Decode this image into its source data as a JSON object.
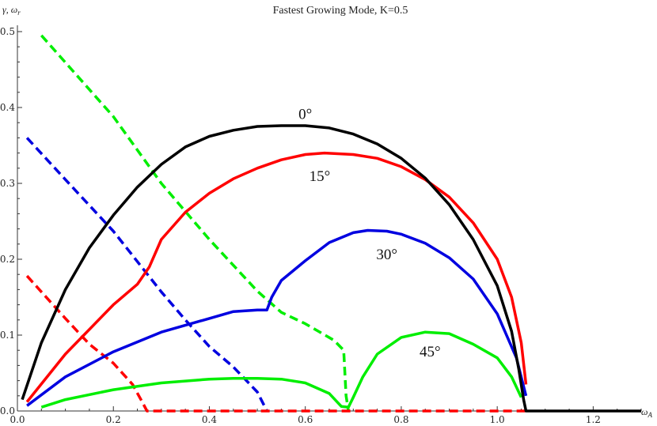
{
  "chart_data": {
    "type": "line",
    "title": "Fastest Growing Mode, K=0.5",
    "xlabel": "ω",
    "xlabel_sub": "A",
    "ylabel": "γ, ω",
    "ylabel_sub": "r",
    "xlim": [
      0,
      1.3
    ],
    "ylim": [
      0,
      0.5
    ],
    "x_ticks": [
      0.0,
      0.2,
      0.4,
      0.6,
      0.8,
      1.0,
      1.2
    ],
    "x_tick_labels": [
      "0.0",
      "0.2",
      "0.4",
      "0.6",
      "0.8",
      "1.0",
      "1.2"
    ],
    "y_ticks": [
      0.0,
      0.1,
      0.2,
      0.3,
      0.4,
      0.5
    ],
    "y_tick_labels": [
      "0.0",
      "0.1",
      "0.2",
      "0.3",
      "0.4",
      "0.5"
    ],
    "grid": false,
    "colors": {
      "black": "#000000",
      "red": "#ff0000",
      "blue": "#0000e0",
      "green": "#00ee00"
    },
    "series": [
      {
        "color": "#000000",
        "dash": false,
        "points": [
          [
            0.01,
            0.015
          ],
          [
            0.05,
            0.09
          ],
          [
            0.1,
            0.16
          ],
          [
            0.15,
            0.215
          ],
          [
            0.2,
            0.258
          ],
          [
            0.25,
            0.295
          ],
          [
            0.3,
            0.325
          ],
          [
            0.35,
            0.348
          ],
          [
            0.4,
            0.362
          ],
          [
            0.45,
            0.37
          ],
          [
            0.5,
            0.375
          ],
          [
            0.55,
            0.376
          ],
          [
            0.6,
            0.376
          ],
          [
            0.65,
            0.373
          ],
          [
            0.7,
            0.365
          ],
          [
            0.75,
            0.352
          ],
          [
            0.8,
            0.333
          ],
          [
            0.85,
            0.307
          ],
          [
            0.9,
            0.272
          ],
          [
            0.95,
            0.226
          ],
          [
            1.0,
            0.165
          ],
          [
            1.03,
            0.105
          ],
          [
            1.045,
            0.055
          ],
          [
            1.055,
            0.015
          ],
          [
            1.06,
            0.0
          ],
          [
            1.3,
            0.0
          ]
        ]
      },
      {
        "color": "#ff0000",
        "dash": false,
        "points": [
          [
            0.02,
            0.012
          ],
          [
            0.1,
            0.075
          ],
          [
            0.2,
            0.14
          ],
          [
            0.25,
            0.167
          ],
          [
            0.275,
            0.19
          ],
          [
            0.3,
            0.226
          ],
          [
            0.35,
            0.262
          ],
          [
            0.4,
            0.287
          ],
          [
            0.45,
            0.306
          ],
          [
            0.5,
            0.32
          ],
          [
            0.55,
            0.331
          ],
          [
            0.6,
            0.338
          ],
          [
            0.64,
            0.34
          ],
          [
            0.7,
            0.338
          ],
          [
            0.75,
            0.333
          ],
          [
            0.8,
            0.322
          ],
          [
            0.85,
            0.305
          ],
          [
            0.9,
            0.282
          ],
          [
            0.95,
            0.248
          ],
          [
            1.0,
            0.2
          ],
          [
            1.03,
            0.15
          ],
          [
            1.05,
            0.09
          ],
          [
            1.06,
            0.035
          ]
        ]
      },
      {
        "color": "#0000e0",
        "dash": false,
        "points": [
          [
            0.02,
            0.007
          ],
          [
            0.1,
            0.045
          ],
          [
            0.2,
            0.078
          ],
          [
            0.3,
            0.104
          ],
          [
            0.4,
            0.122
          ],
          [
            0.45,
            0.131
          ],
          [
            0.5,
            0.133
          ],
          [
            0.52,
            0.133
          ],
          [
            0.53,
            0.15
          ],
          [
            0.55,
            0.172
          ],
          [
            0.6,
            0.198
          ],
          [
            0.65,
            0.222
          ],
          [
            0.7,
            0.235
          ],
          [
            0.73,
            0.238
          ],
          [
            0.77,
            0.237
          ],
          [
            0.8,
            0.233
          ],
          [
            0.85,
            0.221
          ],
          [
            0.9,
            0.202
          ],
          [
            0.95,
            0.174
          ],
          [
            1.0,
            0.128
          ],
          [
            1.04,
            0.07
          ],
          [
            1.06,
            0.02
          ]
        ]
      },
      {
        "color": "#00ee00",
        "dash": false,
        "points": [
          [
            0.05,
            0.005
          ],
          [
            0.1,
            0.015
          ],
          [
            0.2,
            0.028
          ],
          [
            0.3,
            0.037
          ],
          [
            0.4,
            0.042
          ],
          [
            0.45,
            0.043
          ],
          [
            0.5,
            0.043
          ],
          [
            0.55,
            0.042
          ],
          [
            0.6,
            0.037
          ],
          [
            0.65,
            0.023
          ],
          [
            0.675,
            0.006
          ],
          [
            0.69,
            0.005
          ],
          [
            0.7,
            0.018
          ],
          [
            0.72,
            0.045
          ],
          [
            0.75,
            0.075
          ],
          [
            0.8,
            0.097
          ],
          [
            0.85,
            0.104
          ],
          [
            0.9,
            0.102
          ],
          [
            0.95,
            0.088
          ],
          [
            1.0,
            0.07
          ],
          [
            1.03,
            0.045
          ],
          [
            1.05,
            0.018
          ]
        ]
      },
      {
        "color": "#00ee00",
        "dash": true,
        "points": [
          [
            0.05,
            0.495
          ],
          [
            0.2,
            0.388
          ],
          [
            0.3,
            0.3
          ],
          [
            0.4,
            0.226
          ],
          [
            0.5,
            0.158
          ],
          [
            0.55,
            0.13
          ],
          [
            0.6,
            0.115
          ],
          [
            0.66,
            0.093
          ],
          [
            0.68,
            0.08
          ],
          [
            0.685,
            0.02
          ],
          [
            0.69,
            0.0
          ]
        ]
      },
      {
        "color": "#0000e0",
        "dash": true,
        "points": [
          [
            0.02,
            0.36
          ],
          [
            0.1,
            0.305
          ],
          [
            0.2,
            0.237
          ],
          [
            0.3,
            0.157
          ],
          [
            0.35,
            0.12
          ],
          [
            0.4,
            0.085
          ],
          [
            0.45,
            0.058
          ],
          [
            0.5,
            0.025
          ],
          [
            0.52,
            0.0
          ]
        ]
      },
      {
        "color": "#ff0000",
        "dash": true,
        "points": [
          [
            0.02,
            0.178
          ],
          [
            0.1,
            0.122
          ],
          [
            0.15,
            0.088
          ],
          [
            0.2,
            0.063
          ],
          [
            0.24,
            0.035
          ],
          [
            0.26,
            0.012
          ],
          [
            0.27,
            0.0
          ],
          [
            1.06,
            0.0
          ]
        ]
      }
    ],
    "annotations": [
      {
        "text": "0°",
        "x": 0.6,
        "y": 0.385
      },
      {
        "text": "15°",
        "x": 0.63,
        "y": 0.303
      },
      {
        "text": "30°",
        "x": 0.77,
        "y": 0.2
      },
      {
        "text": "45°",
        "x": 0.86,
        "y": 0.072
      }
    ]
  }
}
